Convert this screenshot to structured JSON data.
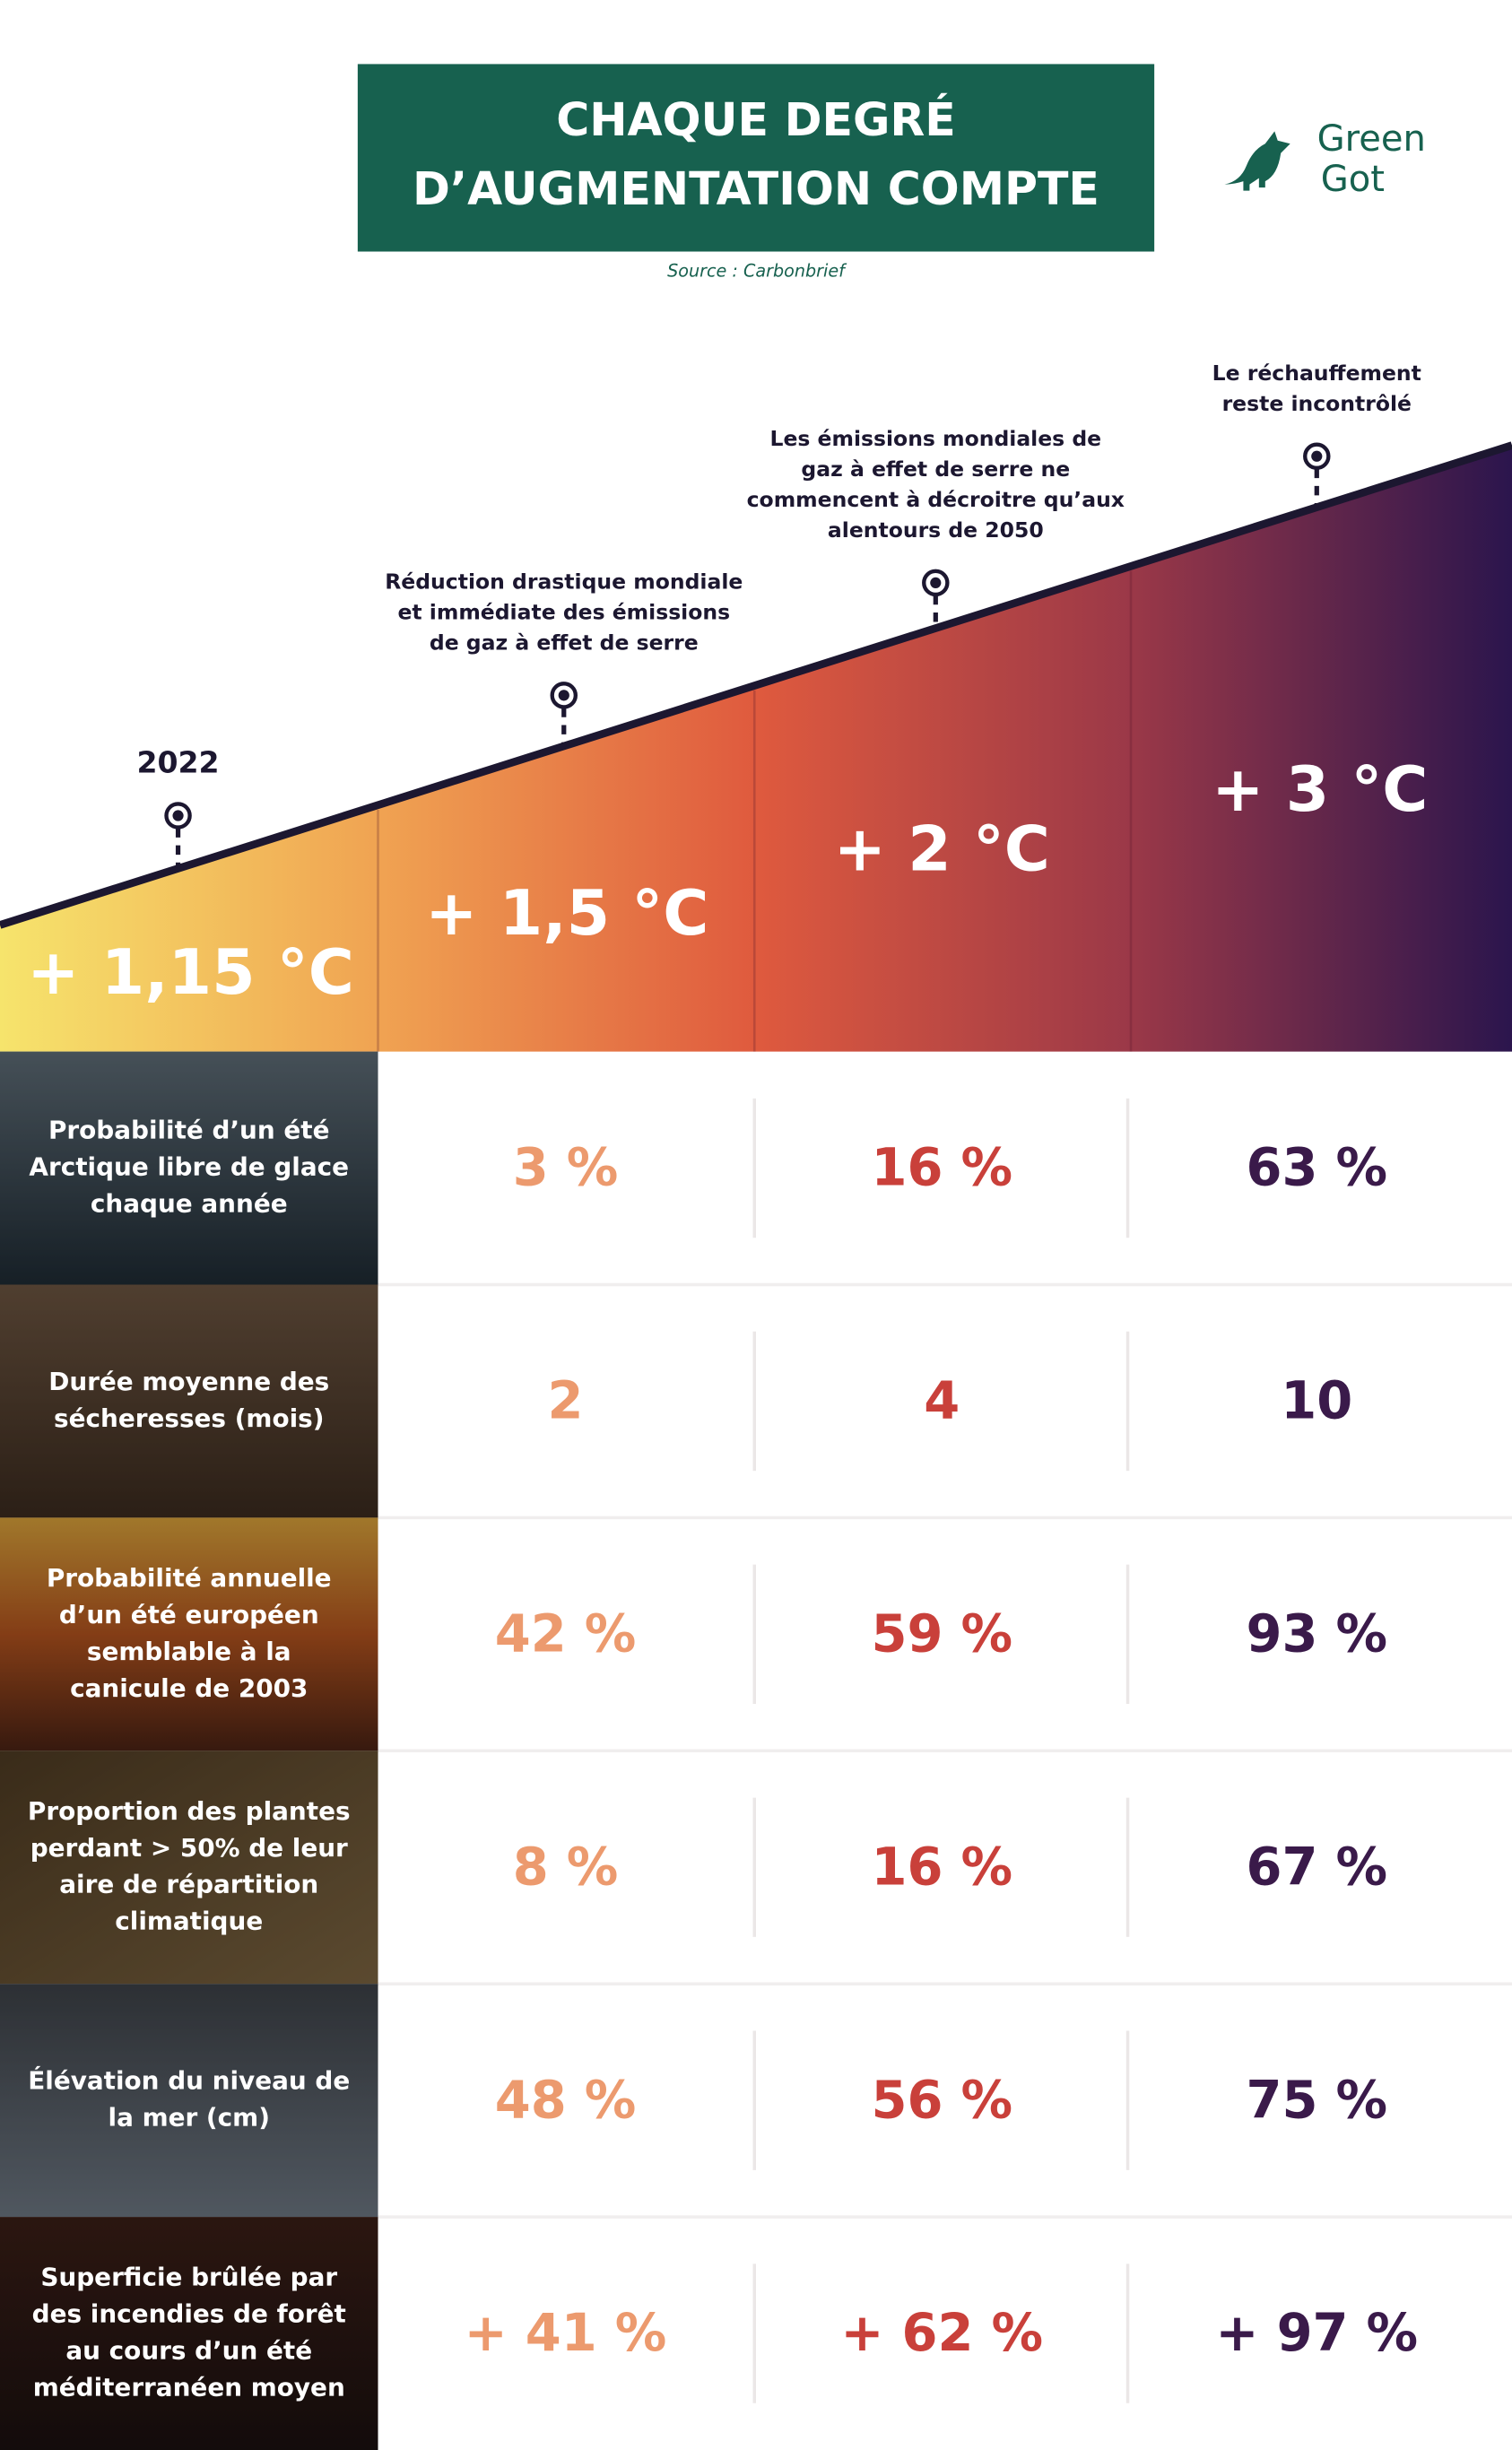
{
  "header": {
    "title": [
      "CHAQUE DEGRÉ",
      "D’AUGMENTATION COMPTE"
    ],
    "source": "Source : Carbonbrief",
    "logo": [
      "Green",
      "Got"
    ]
  },
  "timeline": {
    "start_label": "2022",
    "scenarios": [
      {
        "temperature": "+ 1,15 °C",
        "annotation": []
      },
      {
        "temperature": "+ 1,5 °C",
        "annotation": [
          "Réduction drastique mondiale",
          "et immédiate des émissions",
          "de gaz à effet de serre"
        ]
      },
      {
        "temperature": "+ 2 °C",
        "annotation": [
          "Les émissions mondiales de",
          "gaz à effet de serre ne",
          "commencent à décroitre qu’aux",
          "alentours de 2050"
        ]
      },
      {
        "temperature": "+ 3 °C",
        "annotation": [
          "Le réchauffement",
          "reste incontrôlé"
        ]
      }
    ]
  },
  "table": {
    "rows": [
      {
        "label": [
          "Probabilité d’un été",
          "Arctique libre de glace",
          "chaque année"
        ],
        "values": [
          "3 %",
          "16 %",
          "63 %"
        ]
      },
      {
        "label": [
          "Durée moyenne des",
          "sécheresses (mois)"
        ],
        "values": [
          "2",
          "4",
          "10"
        ]
      },
      {
        "label": [
          "Probabilité annuelle",
          "d’un été européen",
          "semblable à la",
          "canicule de 2003"
        ],
        "values": [
          "42 %",
          "59 %",
          "93 %"
        ]
      },
      {
        "label": [
          "Proportion des plantes",
          "perdant > 50% de leur",
          "aire de répartition",
          "climatique"
        ],
        "values": [
          "8 %",
          "16 %",
          "67 %"
        ]
      },
      {
        "label": [
          "Élévation du niveau de",
          "la mer (cm)"
        ],
        "values": [
          "48 %",
          "56 %",
          "75 %"
        ]
      },
      {
        "label": [
          "Superficie brûlée par",
          "des incendies de forêt",
          "au cours d’un été",
          "méditerranéen moyen"
        ],
        "values": [
          "+ 41 %",
          "+ 62 %",
          "+ 97 %"
        ]
      }
    ]
  }
}
